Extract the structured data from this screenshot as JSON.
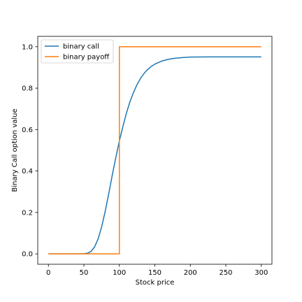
{
  "chart_data": {
    "type": "line",
    "title": "",
    "xlabel": "Stock price",
    "ylabel": "Binary Call option value",
    "xlim": [
      -15,
      315
    ],
    "ylim": [
      -0.05,
      1.05
    ],
    "xticks": [
      0,
      50,
      100,
      150,
      200,
      250,
      300
    ],
    "yticks": [
      0.0,
      0.2,
      0.4,
      0.6,
      0.8,
      1.0
    ],
    "xtick_labels": [
      "0",
      "50",
      "100",
      "150",
      "200",
      "250",
      "300"
    ],
    "ytick_labels": [
      "0.0",
      "0.2",
      "0.4",
      "0.6",
      "0.8",
      "1.0"
    ],
    "grid": false,
    "legend_position": "top-left",
    "series": [
      {
        "name": "binary call",
        "color": "#1f77b4",
        "x": [
          0,
          10,
          20,
          30,
          40,
          50,
          55,
          60,
          65,
          70,
          75,
          80,
          85,
          90,
          95,
          100,
          105,
          110,
          115,
          120,
          125,
          130,
          135,
          140,
          145,
          150,
          160,
          170,
          180,
          190,
          200,
          225,
          250,
          275,
          300
        ],
        "y": [
          0.0,
          0.0,
          0.0,
          0.0,
          0.0,
          0.001,
          0.003,
          0.012,
          0.033,
          0.072,
          0.13,
          0.205,
          0.29,
          0.38,
          0.465,
          0.545,
          0.615,
          0.68,
          0.735,
          0.78,
          0.818,
          0.848,
          0.872,
          0.89,
          0.905,
          0.916,
          0.931,
          0.94,
          0.945,
          0.948,
          0.95,
          0.951,
          0.951,
          0.951,
          0.951
        ]
      },
      {
        "name": "binary payoff",
        "color": "#ff7f0e",
        "x": [
          0,
          100,
          100,
          300
        ],
        "y": [
          0,
          0,
          1,
          1
        ]
      }
    ]
  }
}
